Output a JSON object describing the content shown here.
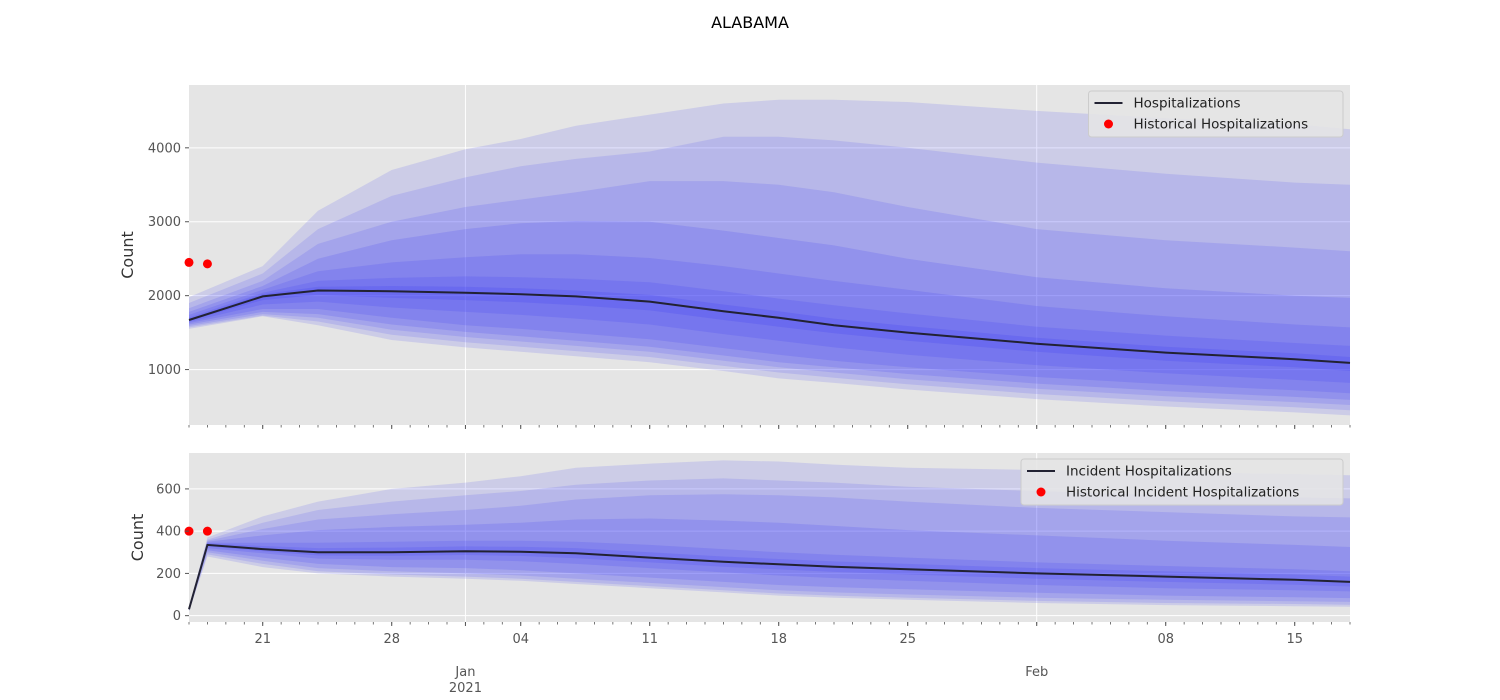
{
  "figure": {
    "title": "ALABAMA",
    "colors": {
      "panel_bg": "#e5e5e5",
      "grid": "#ffffff",
      "band": "#3b3bf5",
      "median_line": "#222233",
      "historical": "#ff0000",
      "tick_text": "#555555"
    },
    "x_tick_labels": [
      {
        "date": "2020-12-21",
        "label": "21"
      },
      {
        "date": "2020-12-28",
        "label": "28"
      },
      {
        "date": "2021-01-04",
        "label": "04"
      },
      {
        "date": "2021-01-11",
        "label": "11"
      },
      {
        "date": "2021-01-18",
        "label": "18"
      },
      {
        "date": "2021-01-25",
        "label": "25"
      },
      {
        "date": "2021-02-08",
        "label": "08"
      },
      {
        "date": "2021-02-15",
        "label": "15"
      }
    ],
    "x_month_labels": [
      {
        "date": "2021-01-01",
        "label": "Jan",
        "sublabel": "2021"
      },
      {
        "date": "2021-02-01",
        "label": "Feb",
        "sublabel": ""
      }
    ]
  },
  "chart_data": [
    {
      "type": "area",
      "name": "top-panel",
      "ylabel": "Count",
      "xlabel": "",
      "xlim": [
        "2020-12-17",
        "2021-02-18"
      ],
      "ylim": [
        250,
        4850
      ],
      "yticks": [
        1000,
        2000,
        3000,
        4000
      ],
      "grid": true,
      "legend_position": "top-right",
      "legend": [
        "Hospitalizations",
        "Historical Hospitalizations"
      ],
      "x": [
        "2020-12-17",
        "2020-12-21",
        "2020-12-24",
        "2020-12-28",
        "2021-01-01",
        "2021-01-04",
        "2021-01-07",
        "2021-01-11",
        "2021-01-15",
        "2021-01-18",
        "2021-01-21",
        "2021-01-25",
        "2021-02-01",
        "2021-02-08",
        "2021-02-15",
        "2021-02-18"
      ],
      "median": [
        1670,
        1990,
        2070,
        2060,
        2040,
        2020,
        1990,
        1920,
        1790,
        1700,
        1600,
        1500,
        1350,
        1230,
        1140,
        1090
      ],
      "bands": [
        {
          "lower": [
            1550,
            1720,
            1600,
            1400,
            1300,
            1240,
            1180,
            1100,
            980,
            880,
            820,
            730,
            600,
            500,
            420,
            380
          ],
          "upper": [
            1980,
            2400,
            3150,
            3700,
            3980,
            4120,
            4300,
            4450,
            4600,
            4650,
            4650,
            4620,
            4500,
            4400,
            4320,
            4250
          ]
        },
        {
          "lower": [
            1570,
            1730,
            1650,
            1470,
            1370,
            1310,
            1250,
            1170,
            1050,
            960,
            890,
            800,
            670,
            570,
            490,
            450
          ],
          "upper": [
            1900,
            2300,
            2900,
            3350,
            3600,
            3750,
            3850,
            3950,
            4150,
            4150,
            4100,
            4000,
            3800,
            3650,
            3530,
            3500
          ]
        },
        {
          "lower": [
            1590,
            1750,
            1700,
            1540,
            1440,
            1380,
            1320,
            1240,
            1120,
            1030,
            960,
            870,
            740,
            640,
            560,
            520
          ],
          "upper": [
            1830,
            2200,
            2700,
            3000,
            3200,
            3300,
            3400,
            3550,
            3550,
            3500,
            3400,
            3200,
            2900,
            2750,
            2650,
            2600
          ]
        },
        {
          "lower": [
            1610,
            1780,
            1750,
            1610,
            1510,
            1450,
            1390,
            1310,
            1190,
            1100,
            1030,
            940,
            810,
            710,
            630,
            590
          ],
          "upper": [
            1780,
            2130,
            2500,
            2750,
            2900,
            2980,
            3010,
            3000,
            2880,
            2780,
            2680,
            2500,
            2250,
            2100,
            2000,
            1970
          ]
        },
        {
          "lower": [
            1630,
            1820,
            1820,
            1700,
            1600,
            1550,
            1490,
            1410,
            1290,
            1200,
            1120,
            1030,
            900,
            800,
            720,
            680
          ],
          "upper": [
            1740,
            2080,
            2330,
            2450,
            2520,
            2560,
            2560,
            2510,
            2400,
            2300,
            2200,
            2080,
            1860,
            1720,
            1610,
            1570
          ]
        },
        {
          "lower": [
            1645,
            1880,
            1920,
            1840,
            1780,
            1740,
            1690,
            1610,
            1480,
            1390,
            1300,
            1200,
            1060,
            950,
            860,
            820
          ],
          "upper": [
            1705,
            2040,
            2200,
            2240,
            2260,
            2250,
            2230,
            2180,
            2060,
            1960,
            1870,
            1760,
            1580,
            1460,
            1360,
            1320
          ]
        },
        {
          "lower": [
            1660,
            1940,
            2010,
            1970,
            1940,
            1910,
            1870,
            1800,
            1670,
            1580,
            1490,
            1390,
            1240,
            1120,
            1030,
            980
          ],
          "upper": [
            1685,
            2020,
            2120,
            2130,
            2120,
            2100,
            2070,
            2010,
            1880,
            1790,
            1690,
            1590,
            1430,
            1310,
            1220,
            1170
          ]
        }
      ],
      "series": [
        {
          "name": "Hospitalizations",
          "kind": "line",
          "values": [
            1670,
            1990,
            2070,
            2060,
            2040,
            2020,
            1990,
            1920,
            1790,
            1700,
            1600,
            1500,
            1350,
            1230,
            1140,
            1090
          ]
        },
        {
          "name": "Historical Hospitalizations",
          "kind": "scatter",
          "points": [
            {
              "x": "2020-12-17",
              "y": 2450
            },
            {
              "x": "2020-12-18",
              "y": 2430
            }
          ]
        }
      ]
    },
    {
      "type": "area",
      "name": "bottom-panel",
      "ylabel": "Count",
      "xlabel": "",
      "xlim": [
        "2020-12-17",
        "2021-02-18"
      ],
      "ylim": [
        -30,
        770
      ],
      "yticks": [
        0,
        200,
        400,
        600
      ],
      "grid": true,
      "legend_position": "top-right",
      "legend": [
        "Incident Hospitalizations",
        "Historical Incident Hospitalizations"
      ],
      "x": [
        "2020-12-17",
        "2020-12-18",
        "2020-12-21",
        "2020-12-24",
        "2020-12-28",
        "2021-01-01",
        "2021-01-04",
        "2021-01-07",
        "2021-01-11",
        "2021-01-15",
        "2021-01-18",
        "2021-01-21",
        "2021-01-25",
        "2021-02-01",
        "2021-02-08",
        "2021-02-15",
        "2021-02-18"
      ],
      "median": [
        30,
        335,
        315,
        300,
        300,
        305,
        303,
        295,
        275,
        255,
        243,
        232,
        220,
        200,
        185,
        170,
        160
      ],
      "bands": [
        {
          "lower": [
            20,
            280,
            230,
            200,
            185,
            175,
            165,
            150,
            130,
            110,
            95,
            85,
            75,
            60,
            50,
            45,
            42
          ],
          "upper": [
            40,
            370,
            470,
            540,
            600,
            630,
            660,
            700,
            720,
            735,
            730,
            715,
            700,
            690,
            680,
            670,
            665
          ]
        },
        {
          "lower": [
            22,
            290,
            245,
            210,
            195,
            185,
            175,
            160,
            140,
            120,
            105,
            95,
            85,
            70,
            60,
            55,
            52
          ],
          "upper": [
            38,
            360,
            440,
            500,
            540,
            570,
            590,
            620,
            640,
            650,
            640,
            630,
            610,
            590,
            570,
            560,
            555
          ]
        },
        {
          "lower": [
            24,
            300,
            260,
            225,
            210,
            200,
            190,
            175,
            155,
            135,
            120,
            110,
            100,
            85,
            75,
            68,
            65
          ],
          "upper": [
            36,
            355,
            410,
            455,
            480,
            500,
            520,
            550,
            570,
            575,
            570,
            560,
            540,
            510,
            490,
            470,
            465
          ]
        },
        {
          "lower": [
            26,
            310,
            275,
            245,
            230,
            225,
            215,
            200,
            180,
            160,
            145,
            135,
            125,
            108,
            95,
            87,
            83
          ],
          "upper": [
            34,
            350,
            380,
            405,
            420,
            430,
            440,
            455,
            460,
            450,
            440,
            425,
            405,
            380,
            355,
            335,
            325
          ]
        },
        {
          "lower": [
            28,
            320,
            295,
            270,
            265,
            265,
            258,
            245,
            225,
            205,
            190,
            178,
            165,
            145,
            130,
            120,
            115
          ],
          "upper": [
            32,
            345,
            345,
            345,
            350,
            355,
            355,
            350,
            335,
            315,
            300,
            288,
            275,
            252,
            235,
            220,
            210
          ]
        },
        {
          "lower": [
            29,
            328,
            305,
            285,
            283,
            287,
            283,
            272,
            252,
            232,
            219,
            207,
            195,
            175,
            160,
            146,
            138
          ],
          "upper": [
            31,
            342,
            330,
            320,
            322,
            328,
            326,
            320,
            300,
            280,
            268,
            257,
            245,
            225,
            210,
            195,
            185
          ]
        }
      ],
      "series": [
        {
          "name": "Incident Hospitalizations",
          "kind": "line",
          "values": [
            30,
            335,
            315,
            300,
            300,
            305,
            303,
            295,
            275,
            255,
            243,
            232,
            220,
            200,
            185,
            170,
            160
          ]
        },
        {
          "name": "Historical Incident Hospitalizations",
          "kind": "scatter",
          "points": [
            {
              "x": "2020-12-17",
              "y": 400
            },
            {
              "x": "2020-12-18",
              "y": 400
            }
          ]
        }
      ]
    }
  ]
}
